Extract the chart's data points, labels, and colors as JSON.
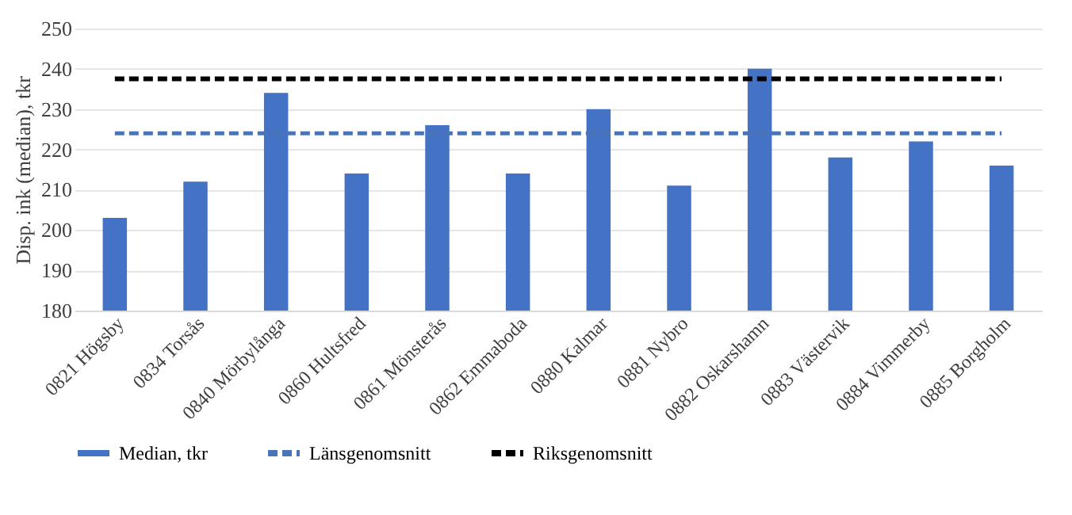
{
  "chart_data": {
    "type": "bar",
    "ylabel": "Disp. ink (median), tkr",
    "categories": [
      "0821 Högsby",
      "0834 Torsås",
      "0840 Mörbylånga",
      "0860 Hultsfred",
      "0861 Mönsterås",
      "0862 Emmaboda",
      "0880 Kalmar",
      "0881 Nybro",
      "0882 Oskarshamn",
      "0883 Västervik",
      "0884 Vimmerby",
      "0885 Borgholm"
    ],
    "series": [
      {
        "name": "Median, tkr",
        "type": "bar",
        "color": "#4472c4",
        "values": [
          203,
          212,
          234,
          214,
          226,
          214,
          230,
          211,
          240,
          218,
          222,
          216
        ]
      },
      {
        "name": "Länsgenomsnitt",
        "type": "line",
        "color": "#4a74b8",
        "line_style": "dashed",
        "values": [
          224,
          224,
          224,
          224,
          224,
          224,
          224,
          224,
          224,
          224,
          224,
          224
        ]
      },
      {
        "name": "Riksgenomsnitt",
        "type": "line",
        "color": "#000000",
        "line_style": "dashed",
        "values": [
          237.5,
          237.5,
          237.5,
          237.5,
          237.5,
          237.5,
          237.5,
          237.5,
          237.5,
          237.5,
          237.5,
          237.5
        ]
      }
    ],
    "ylim": [
      180,
      250
    ],
    "yticks": [
      180,
      190,
      200,
      210,
      220,
      230,
      240,
      250
    ],
    "grid": "y",
    "legend": "bottom",
    "marker": "none"
  }
}
